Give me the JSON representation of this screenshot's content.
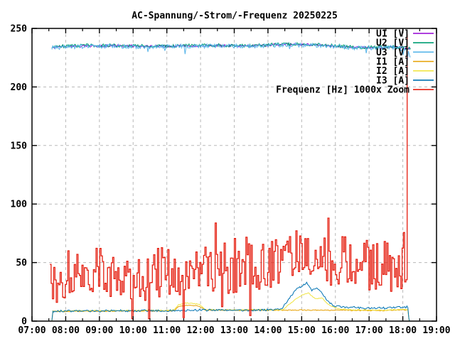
{
  "title": "AC-Spannung/-Strom/-Frequenz 20250225",
  "chart_data": {
    "type": "line",
    "title": "AC-Spannung/-Strom/-Frequenz 20250225",
    "xlabel": "",
    "ylabel": "",
    "xlim": [
      7,
      19
    ],
    "ylim": [
      0,
      250
    ],
    "x_tick_labels": [
      "07:00",
      "08:00",
      "09:00",
      "10:00",
      "11:00",
      "12:00",
      "13:00",
      "14:00",
      "15:00",
      "16:00",
      "17:00",
      "18:00",
      "19:00"
    ],
    "x_tick_hours": [
      7,
      8,
      9,
      10,
      11,
      12,
      13,
      14,
      15,
      16,
      17,
      18,
      19
    ],
    "y_tick_values": [
      0,
      50,
      100,
      150,
      200,
      250
    ],
    "y_tick_labels": [
      "0",
      "50",
      "100",
      "150",
      "200",
      "250"
    ],
    "grid": true,
    "grid_color": "#b8b8b8",
    "legend_position": "top-right",
    "render_seed": 20250225,
    "series": [
      {
        "name": "U1 [V]",
        "unit": "V",
        "color": "#9400d3",
        "style": "line",
        "width": 1,
        "dt": 0.025,
        "noise": 1.0,
        "keyframes": [
          [
            7.59,
            234
          ],
          [
            8.5,
            235
          ],
          [
            9.5,
            235.2
          ],
          [
            10.5,
            234.6
          ],
          [
            11.5,
            235
          ],
          [
            12.5,
            235.4
          ],
          [
            13.5,
            235
          ],
          [
            14.2,
            236
          ],
          [
            14.8,
            236.4
          ],
          [
            15.3,
            236
          ],
          [
            16.0,
            235
          ],
          [
            16.6,
            233.6
          ],
          [
            17.2,
            233.6
          ],
          [
            17.8,
            234.2
          ],
          [
            18.1,
            233.2
          ],
          [
            18.22,
            232.8
          ]
        ]
      },
      {
        "name": "U2 [V]",
        "unit": "V",
        "color": "#009e73",
        "style": "line",
        "width": 1,
        "dt": 0.025,
        "noise": 1.4,
        "keyframes": [
          [
            7.59,
            234.4
          ],
          [
            8.5,
            235.4
          ],
          [
            9.5,
            235.4
          ],
          [
            10.5,
            234.8
          ],
          [
            11.5,
            235.2
          ],
          [
            12.5,
            235.6
          ],
          [
            13.5,
            235.2
          ],
          [
            14.2,
            236.2
          ],
          [
            14.8,
            236.6
          ],
          [
            15.3,
            236.2
          ],
          [
            16.0,
            235.2
          ],
          [
            16.6,
            233.8
          ],
          [
            17.2,
            233.8
          ],
          [
            17.8,
            234.4
          ],
          [
            18.1,
            233.4
          ],
          [
            18.22,
            233
          ]
        ]
      },
      {
        "name": "U3 [V]",
        "unit": "V",
        "color": "#56b4e9",
        "style": "line",
        "width": 1,
        "dt": 0.025,
        "noise": 1.8,
        "dip_chance": 0.03,
        "dip_depth": 5,
        "keyframes": [
          [
            7.59,
            233.6
          ],
          [
            8.5,
            234.6
          ],
          [
            9.5,
            234.8
          ],
          [
            10.5,
            234.2
          ],
          [
            11.5,
            234.6
          ],
          [
            12.5,
            235
          ],
          [
            13.5,
            234.6
          ],
          [
            14.2,
            235.6
          ],
          [
            14.8,
            236
          ],
          [
            15.3,
            235.6
          ],
          [
            16.0,
            234.6
          ],
          [
            16.6,
            233.2
          ],
          [
            17.2,
            233.2
          ],
          [
            17.8,
            233.8
          ],
          [
            18.12,
            231
          ],
          [
            18.18,
            229
          ],
          [
            18.22,
            226
          ]
        ]
      },
      {
        "name": "I1 [A]",
        "unit": "A",
        "color": "#e69f00",
        "style": "line",
        "width": 1,
        "dt": 0.03,
        "noise": 0.4,
        "clamp_min": 0,
        "keyframes": [
          [
            7.59,
            0
          ],
          [
            7.62,
            8.2
          ],
          [
            8.2,
            8.4
          ],
          [
            9.5,
            8.6
          ],
          [
            11.2,
            8.8
          ],
          [
            11.35,
            12.5
          ],
          [
            11.6,
            13.5
          ],
          [
            11.95,
            13
          ],
          [
            12.15,
            9.4
          ],
          [
            13.5,
            9.2
          ],
          [
            14.5,
            9.4
          ],
          [
            15.5,
            9.4
          ],
          [
            16.5,
            9.1
          ],
          [
            17.4,
            9
          ],
          [
            18.0,
            9.6
          ],
          [
            18.15,
            9.6
          ],
          [
            18.19,
            0
          ]
        ]
      },
      {
        "name": "I2 [A]",
        "unit": "A",
        "color": "#f0e442",
        "style": "line",
        "width": 1,
        "dt": 0.03,
        "noise": 0.4,
        "clamp_min": 0,
        "keyframes": [
          [
            7.59,
            0
          ],
          [
            7.62,
            8.6
          ],
          [
            8.2,
            8.8
          ],
          [
            9.5,
            9
          ],
          [
            11.2,
            9.2
          ],
          [
            11.35,
            14
          ],
          [
            11.6,
            15.5
          ],
          [
            11.95,
            14.5
          ],
          [
            12.15,
            9.8
          ],
          [
            13.5,
            9.6
          ],
          [
            14.45,
            9.8
          ],
          [
            14.7,
            16
          ],
          [
            15.0,
            22
          ],
          [
            15.2,
            24
          ],
          [
            15.4,
            19
          ],
          [
            15.6,
            20
          ],
          [
            15.8,
            14
          ],
          [
            16.1,
            10.5
          ],
          [
            16.5,
            9.5
          ],
          [
            17.4,
            9.4
          ],
          [
            18.0,
            10
          ],
          [
            18.15,
            10
          ],
          [
            18.19,
            0
          ]
        ]
      },
      {
        "name": "I3 [A]",
        "unit": "A",
        "color": "#0072b2",
        "style": "line",
        "width": 1,
        "dt": 0.03,
        "noise": 0.9,
        "clamp_min": 0,
        "keyframes": [
          [
            7.59,
            0
          ],
          [
            7.61,
            8.4
          ],
          [
            8.2,
            8.6
          ],
          [
            9.5,
            8.8
          ],
          [
            11.2,
            9
          ],
          [
            11.6,
            9.4
          ],
          [
            12.15,
            9.4
          ],
          [
            13.5,
            9.4
          ],
          [
            14.4,
            10
          ],
          [
            14.6,
            18
          ],
          [
            14.8,
            26
          ],
          [
            15.0,
            30
          ],
          [
            15.15,
            33
          ],
          [
            15.3,
            26
          ],
          [
            15.45,
            29
          ],
          [
            15.6,
            24
          ],
          [
            15.8,
            16
          ],
          [
            16.0,
            12.5
          ],
          [
            16.4,
            11.8
          ],
          [
            17.0,
            11
          ],
          [
            17.6,
            11.2
          ],
          [
            18.0,
            12
          ],
          [
            18.15,
            12
          ],
          [
            18.17,
            4
          ],
          [
            18.2,
            0
          ]
        ]
      },
      {
        "name": "Frequenz [Hz] 1000x Zoom",
        "unit": "Hz",
        "color": "#e51e10",
        "style": "step",
        "width": 1.3,
        "dt": 0.038,
        "noise": 22,
        "jumpy": true,
        "clamp_min": 3,
        "clamp_max": 95,
        "spikes": [
          [
            9.97,
            2
          ],
          [
            10.45,
            2
          ],
          [
            11.47,
            3
          ]
        ],
        "keyframes": [
          [
            7.53,
            40
          ],
          [
            8.0,
            38
          ],
          [
            8.5,
            42
          ],
          [
            9.0,
            46
          ],
          [
            9.5,
            40
          ],
          [
            10.0,
            36
          ],
          [
            10.5,
            40
          ],
          [
            11.0,
            43
          ],
          [
            11.5,
            38
          ],
          [
            12.0,
            45
          ],
          [
            12.5,
            42
          ],
          [
            13.0,
            45
          ],
          [
            13.5,
            48
          ],
          [
            14.0,
            50
          ],
          [
            14.5,
            55
          ],
          [
            15.0,
            56
          ],
          [
            15.5,
            56
          ],
          [
            16.0,
            50
          ],
          [
            16.5,
            53
          ],
          [
            17.0,
            48
          ],
          [
            17.5,
            46
          ],
          [
            18.0,
            42
          ],
          [
            18.1,
            35
          ],
          [
            18.13,
            245
          ]
        ]
      }
    ]
  },
  "legend": {
    "items": [
      {
        "label": "U1 [V]",
        "color": "#9400d3"
      },
      {
        "label": "U2 [V]",
        "color": "#009e73"
      },
      {
        "label": "U3 [V]",
        "color": "#56b4e9"
      },
      {
        "label": "I1 [A]",
        "color": "#e69f00"
      },
      {
        "label": "I2 [A]",
        "color": "#f0e442"
      },
      {
        "label": "I3 [A]",
        "color": "#0072b2"
      },
      {
        "label": "Frequenz [Hz] 1000x Zoom",
        "color": "#e51e10"
      }
    ]
  },
  "colors": {
    "background": "#ffffff",
    "border": "#000000",
    "grid": "#b8b8b8",
    "text": "#000000"
  }
}
